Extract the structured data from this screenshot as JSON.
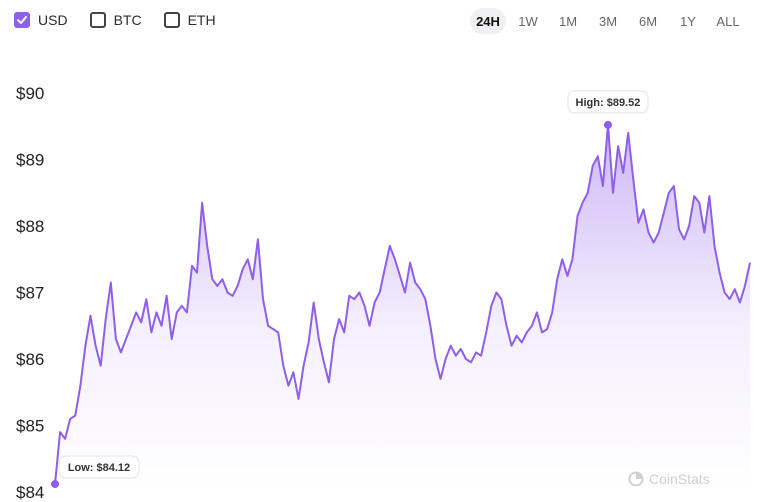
{
  "currencies": [
    {
      "label": "USD",
      "checked": true
    },
    {
      "label": "BTC",
      "checked": false
    },
    {
      "label": "ETH",
      "checked": false
    }
  ],
  "ranges": [
    {
      "label": "24H",
      "active": true
    },
    {
      "label": "1W",
      "active": false
    },
    {
      "label": "1M",
      "active": false
    },
    {
      "label": "3M",
      "active": false
    },
    {
      "label": "6M",
      "active": false
    },
    {
      "label": "1Y",
      "active": false
    },
    {
      "label": "ALL",
      "active": false
    }
  ],
  "watermark": "CoinStats",
  "colors": {
    "line": "#8e5fe8",
    "accent": "#8e5fe8",
    "fill_top": "#a57cf0"
  },
  "chart_data": {
    "type": "area",
    "title": "",
    "xlabel": "",
    "ylabel": "",
    "ylim": [
      84,
      90
    ],
    "yticks": [
      "$90",
      "$89",
      "$88",
      "$87",
      "$86",
      "$85",
      "$84"
    ],
    "ytick_values": [
      90,
      89,
      88,
      87,
      86,
      85,
      84
    ],
    "grid": false,
    "series": [
      {
        "values": [
          84.12,
          84.9,
          84.8,
          85.1,
          85.15,
          85.6,
          86.2,
          86.65,
          86.2,
          85.9,
          86.6,
          87.15,
          86.3,
          86.1,
          86.3,
          86.5,
          86.7,
          86.55,
          86.9,
          86.4,
          86.7,
          86.5,
          86.95,
          86.3,
          86.7,
          86.8,
          86.7,
          87.4,
          87.3,
          88.35,
          87.7,
          87.2,
          87.1,
          87.2,
          87.0,
          86.95,
          87.1,
          87.35,
          87.5,
          87.2,
          87.8,
          86.9,
          86.5,
          86.45,
          86.4,
          85.9,
          85.6,
          85.8,
          85.4,
          85.9,
          86.25,
          86.85,
          86.3,
          85.95,
          85.65,
          86.3,
          86.6,
          86.4,
          86.95,
          86.9,
          87.0,
          86.8,
          86.5,
          86.85,
          87.0,
          87.35,
          87.7,
          87.5,
          87.25,
          87.0,
          87.45,
          87.15,
          87.05,
          86.9,
          86.5,
          86.0,
          85.7,
          86.0,
          86.2,
          86.05,
          86.15,
          86.0,
          85.95,
          86.1,
          86.05,
          86.4,
          86.8,
          87.0,
          86.9,
          86.5,
          86.2,
          86.35,
          86.25,
          86.4,
          86.5,
          86.7,
          86.4,
          86.45,
          86.7,
          87.2,
          87.5,
          87.25,
          87.5,
          88.15,
          88.35,
          88.5,
          88.9,
          89.05,
          88.6,
          89.52,
          88.5,
          89.2,
          88.8,
          89.4,
          88.7,
          88.05,
          88.25,
          87.9,
          87.75,
          87.9,
          88.2,
          88.5,
          88.6,
          87.95,
          87.8,
          88.0,
          88.45,
          88.35,
          87.9,
          88.45,
          87.7,
          87.3,
          87.0,
          86.9,
          87.05,
          86.85,
          87.1,
          87.45
        ]
      }
    ],
    "annotations": [
      {
        "label": "High: $89.52",
        "value": 89.52,
        "index": 109
      },
      {
        "label": "Low: $84.12",
        "value": 84.12,
        "index": 0
      }
    ]
  }
}
